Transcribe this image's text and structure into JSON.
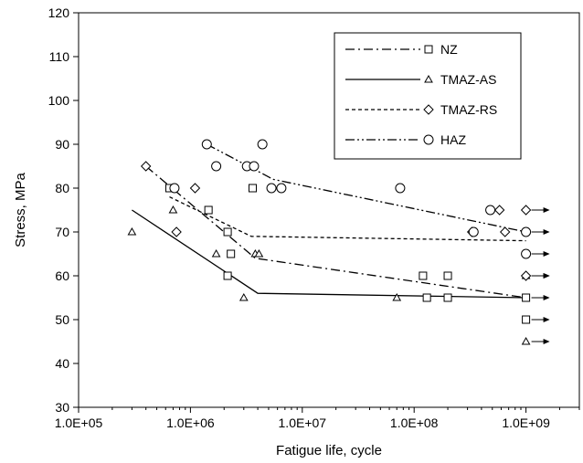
{
  "chart_data": {
    "type": "scatter",
    "title": "",
    "xlabel": "Fatigue life, cycle",
    "ylabel": "Stress, MPa",
    "xscale": "log",
    "xlim": [
      100000,
      3000000000
    ],
    "ylim": [
      30,
      120
    ],
    "xticks": [
      100000,
      1000000,
      10000000,
      100000000,
      1000000000
    ],
    "xtick_labels": [
      "1.0E+05",
      "1.0E+06",
      "1.0E+07",
      "1.0E+08",
      "1.0E+09"
    ],
    "yticks": [
      30,
      40,
      50,
      60,
      70,
      80,
      90,
      100,
      110,
      120
    ],
    "ytick_labels": [
      "30",
      "40",
      "50",
      "60",
      "70",
      "80",
      "90",
      "100",
      "110",
      "120"
    ],
    "grid": false,
    "legend_position": "top-right",
    "series": [
      {
        "name": "NZ",
        "marker": "square",
        "line_style": "dash-dot",
        "points": [
          [
            650000,
            80
          ],
          [
            1450000,
            75
          ],
          [
            2150000,
            70
          ],
          [
            2150000,
            60
          ],
          [
            2300000,
            65
          ],
          [
            3600000,
            80
          ],
          [
            120000000,
            60
          ],
          [
            130000000,
            55
          ],
          [
            200000000,
            60
          ],
          [
            200000000,
            55
          ],
          [
            1000000000,
            55
          ],
          [
            1000000000,
            50
          ]
        ],
        "fit_line": [
          [
            400000,
            85
          ],
          [
            3800000,
            64
          ],
          [
            1000000000,
            55
          ]
        ],
        "runouts": [
          [
            1000000000,
            55
          ],
          [
            1000000000,
            50
          ]
        ]
      },
      {
        "name": "TMAZ-AS",
        "marker": "triangle",
        "line_style": "solid",
        "points": [
          [
            300000,
            70
          ],
          [
            700000,
            75
          ],
          [
            1700000,
            65
          ],
          [
            3000000,
            55
          ],
          [
            3800000,
            65
          ],
          [
            4100000,
            65
          ],
          [
            70000000,
            55
          ],
          [
            1000000000,
            60
          ],
          [
            1000000000,
            45
          ]
        ],
        "fit_line": [
          [
            300000,
            75
          ],
          [
            4000000,
            56
          ],
          [
            1000000000,
            55
          ]
        ],
        "runouts": [
          [
            1000000000,
            60
          ],
          [
            1000000000,
            45
          ]
        ]
      },
      {
        "name": "TMAZ-RS",
        "marker": "diamond",
        "line_style": "dashed",
        "points": [
          [
            400000,
            85
          ],
          [
            750000,
            70
          ],
          [
            1100000,
            80
          ],
          [
            330000000,
            70
          ],
          [
            580000000,
            75
          ],
          [
            650000000,
            70
          ],
          [
            1000000000,
            75
          ],
          [
            1000000000,
            60
          ]
        ],
        "fit_line": [
          [
            650000,
            78
          ],
          [
            3500000,
            69
          ],
          [
            1000000000,
            68
          ]
        ],
        "runouts": [
          [
            1000000000,
            75
          ],
          [
            1000000000,
            60
          ]
        ]
      },
      {
        "name": "HAZ",
        "marker": "circle",
        "line_style": "dash-dot-dot",
        "points": [
          [
            720000,
            80
          ],
          [
            1400000,
            90
          ],
          [
            1700000,
            85
          ],
          [
            3200000,
            85
          ],
          [
            3700000,
            85
          ],
          [
            4400000,
            90
          ],
          [
            5300000,
            80
          ],
          [
            6500000,
            80
          ],
          [
            75000000,
            80
          ],
          [
            340000000,
            70
          ],
          [
            480000000,
            75
          ],
          [
            1000000000,
            70
          ],
          [
            1000000000,
            65
          ]
        ],
        "fit_line": [
          [
            1400000,
            90
          ],
          [
            5500000,
            82
          ],
          [
            1000000000,
            70
          ]
        ],
        "runouts": [
          [
            1000000000,
            70
          ],
          [
            1000000000,
            65
          ]
        ]
      }
    ]
  }
}
